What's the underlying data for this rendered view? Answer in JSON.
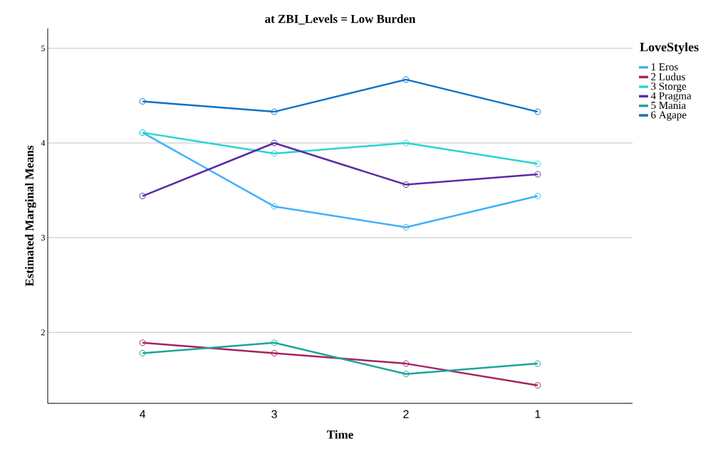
{
  "chart_data": {
    "type": "line",
    "title": "at ZBI_Levels = Low Burden",
    "xlabel": "Time",
    "ylabel": "Estimated Marginal Means",
    "legend_title": "LoveStyles",
    "categories": [
      "4",
      "3",
      "2",
      "1"
    ],
    "series": [
      {
        "name": "1 Eros",
        "color": "#3fb1fc",
        "values": [
          4.11,
          3.33,
          3.11,
          3.44
        ]
      },
      {
        "name": "2 Ludus",
        "color": "#a5235f",
        "values": [
          1.89,
          1.78,
          1.67,
          1.44
        ]
      },
      {
        "name": "3 Storge",
        "color": "#2cd3d3",
        "values": [
          4.11,
          3.89,
          4.0,
          3.78
        ]
      },
      {
        "name": "4 Pragma",
        "color": "#5a2aa6",
        "values": [
          3.44,
          4.0,
          3.56,
          3.67
        ]
      },
      {
        "name": "5 Mania",
        "color": "#1ea39c",
        "values": [
          1.78,
          1.89,
          1.56,
          1.67
        ]
      },
      {
        "name": "6 Agape",
        "color": "#0a72c8",
        "values": [
          4.44,
          4.33,
          4.67,
          4.33
        ]
      }
    ],
    "ylim": [
      1.25,
      5.21
    ],
    "yticks": [
      2,
      3,
      4,
      5
    ],
    "grid": "y",
    "legend": "right",
    "marker": "circle",
    "line_style": "solid"
  }
}
